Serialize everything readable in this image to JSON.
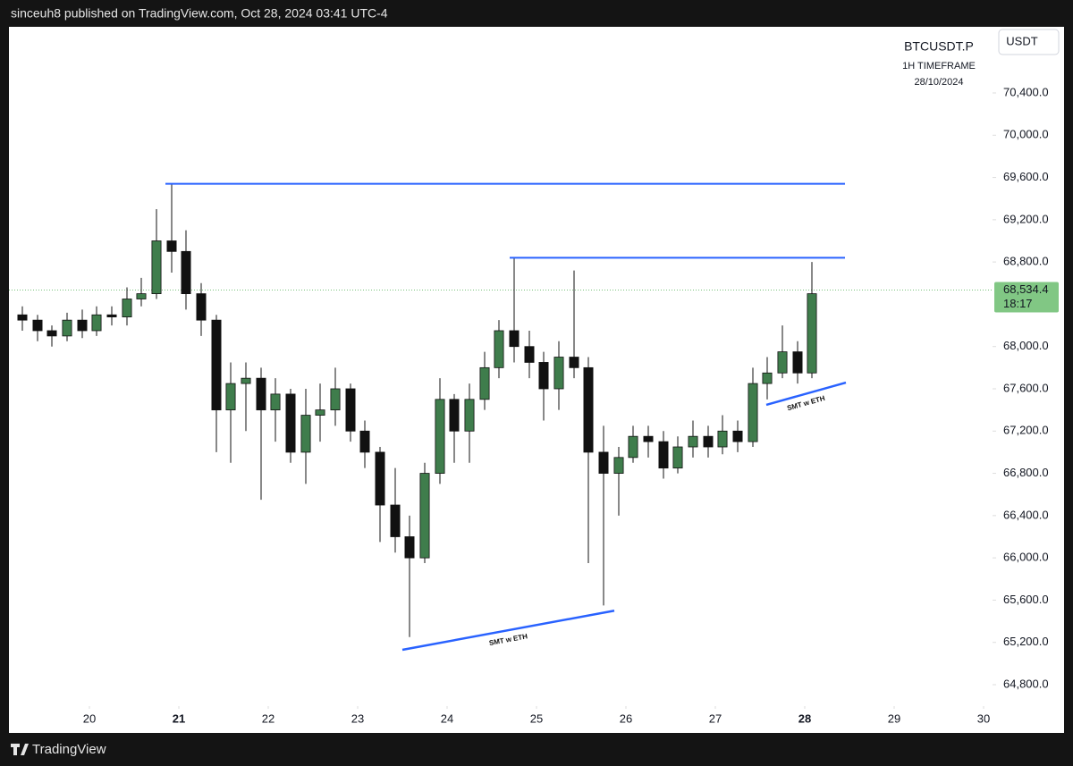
{
  "header": {
    "text": "sinceuh8 published on TradingView.com, Oct 28, 2024 03:41 UTC-4"
  },
  "footer": {
    "brand": "TradingView"
  },
  "chart_data": {
    "type": "candlestick",
    "title": "BTCUSDT.P",
    "subtitle": "1H TIMEFRAME",
    "date": "28/10/2024",
    "currency": "USDT",
    "up_color": "#3f7d4c",
    "down_color": "#111111",
    "line_color": "#2962ff",
    "xlim": [
      19.1,
      30.1
    ],
    "xticks": [
      20,
      21,
      22,
      23,
      24,
      25,
      26,
      27,
      28,
      29,
      30
    ],
    "bold_xticks": [
      21,
      28
    ],
    "ylim": [
      64360,
      71026
    ],
    "yticks": [
      {
        "value": 64800,
        "label": "64,800.0"
      },
      {
        "value": 65200,
        "label": "65,200.0"
      },
      {
        "value": 65600,
        "label": "65,600.0"
      },
      {
        "value": 66000,
        "label": "66,000.0"
      },
      {
        "value": 66400,
        "label": "66,400.0"
      },
      {
        "value": 66800,
        "label": "66,800.0"
      },
      {
        "value": 67200,
        "label": "67,200.0"
      },
      {
        "value": 67600,
        "label": "67,600.0"
      },
      {
        "value": 68000,
        "label": "68,000.0"
      },
      {
        "value": 68800,
        "label": "68,800.0"
      },
      {
        "value": 69200,
        "label": "69,200.0"
      },
      {
        "value": 69600,
        "label": "69,600.0"
      },
      {
        "value": 70000,
        "label": "70,000.0"
      },
      {
        "value": 70400,
        "label": "70,400.0"
      }
    ],
    "last_price": {
      "value": 68534.4,
      "label": "68,534.4"
    },
    "countdown": "18:17",
    "x": [
      19.25,
      19.42,
      19.58,
      19.75,
      19.92,
      20.08,
      20.25,
      20.42,
      20.58,
      20.75,
      20.92,
      21.08,
      21.25,
      21.42,
      21.58,
      21.75,
      21.92,
      22.08,
      22.25,
      22.42,
      22.58,
      22.75,
      22.92,
      23.08,
      23.25,
      23.42,
      23.58,
      23.75,
      23.92,
      24.08,
      24.25,
      24.42,
      24.58,
      24.75,
      24.92,
      25.08,
      25.25,
      25.42,
      25.58,
      25.75,
      25.92,
      26.08,
      26.25,
      26.42,
      26.58,
      26.75,
      26.92,
      27.08,
      27.25,
      27.42,
      27.58,
      27.75,
      27.92,
      28.08
    ],
    "open": [
      68300,
      68250,
      68150,
      68100,
      68250,
      68150,
      68300,
      68280,
      68450,
      68500,
      69000,
      68900,
      68500,
      68250,
      67400,
      67650,
      67700,
      67400,
      67550,
      67000,
      67350,
      67400,
      67600,
      67200,
      67000,
      66500,
      66200,
      66000,
      66800,
      67500,
      67200,
      67500,
      67800,
      68150,
      68000,
      67850,
      67600,
      67900,
      67800,
      67000,
      66800,
      66950,
      67150,
      67100,
      66850,
      67050,
      67150,
      67050,
      67200,
      67100,
      67650,
      67750,
      67950,
      67750
    ],
    "high": [
      68380,
      68300,
      68200,
      68320,
      68350,
      68380,
      68380,
      68560,
      68650,
      69300,
      69540,
      69100,
      68600,
      68300,
      67850,
      67850,
      67800,
      67700,
      67600,
      67600,
      67650,
      67800,
      67650,
      67300,
      67050,
      66850,
      66400,
      66900,
      67700,
      67550,
      67650,
      67950,
      68250,
      68840,
      68150,
      67950,
      68050,
      68720,
      67900,
      67250,
      67050,
      67250,
      67250,
      67200,
      67150,
      67300,
      67250,
      67350,
      67300,
      67800,
      67900,
      68200,
      68050,
      68800
    ],
    "low": [
      68150,
      68050,
      68000,
      68050,
      68080,
      68100,
      68200,
      68200,
      68380,
      68450,
      68700,
      68350,
      68100,
      67000,
      66900,
      67200,
      66550,
      67100,
      66900,
      66700,
      67100,
      67250,
      67100,
      66850,
      66150,
      66050,
      65250,
      65950,
      66700,
      66900,
      66900,
      67400,
      67700,
      67850,
      67700,
      67300,
      67400,
      67700,
      65950,
      65550,
      66400,
      66900,
      66950,
      66750,
      66800,
      66950,
      66950,
      66980,
      67000,
      67050,
      67500,
      67700,
      67650,
      67700
    ],
    "close": [
      68250,
      68150,
      68100,
      68250,
      68150,
      68300,
      68280,
      68450,
      68500,
      69000,
      68900,
      68500,
      68250,
      67400,
      67650,
      67700,
      67400,
      67550,
      67000,
      67350,
      67400,
      67600,
      67200,
      67000,
      66500,
      66200,
      66000,
      66800,
      67500,
      67200,
      67500,
      67800,
      68150,
      68000,
      67850,
      67600,
      67900,
      67800,
      67000,
      66800,
      66950,
      67150,
      67100,
      66850,
      67050,
      67150,
      67050,
      67200,
      67100,
      67650,
      67750,
      67950,
      67750,
      68500
    ],
    "hlines": [
      {
        "value": 69540,
        "from": 20.85,
        "to": 28.45
      },
      {
        "value": 68840,
        "from": 24.7,
        "to": 28.45
      }
    ],
    "trendlines": [
      {
        "x": [
          23.5,
          25.87
        ],
        "y": [
          65130,
          65500
        ],
        "label": "SMT w ETH"
      },
      {
        "x": [
          27.57,
          28.46
        ],
        "y": [
          67448,
          67659
        ],
        "label": "SMT w ETH"
      }
    ]
  }
}
